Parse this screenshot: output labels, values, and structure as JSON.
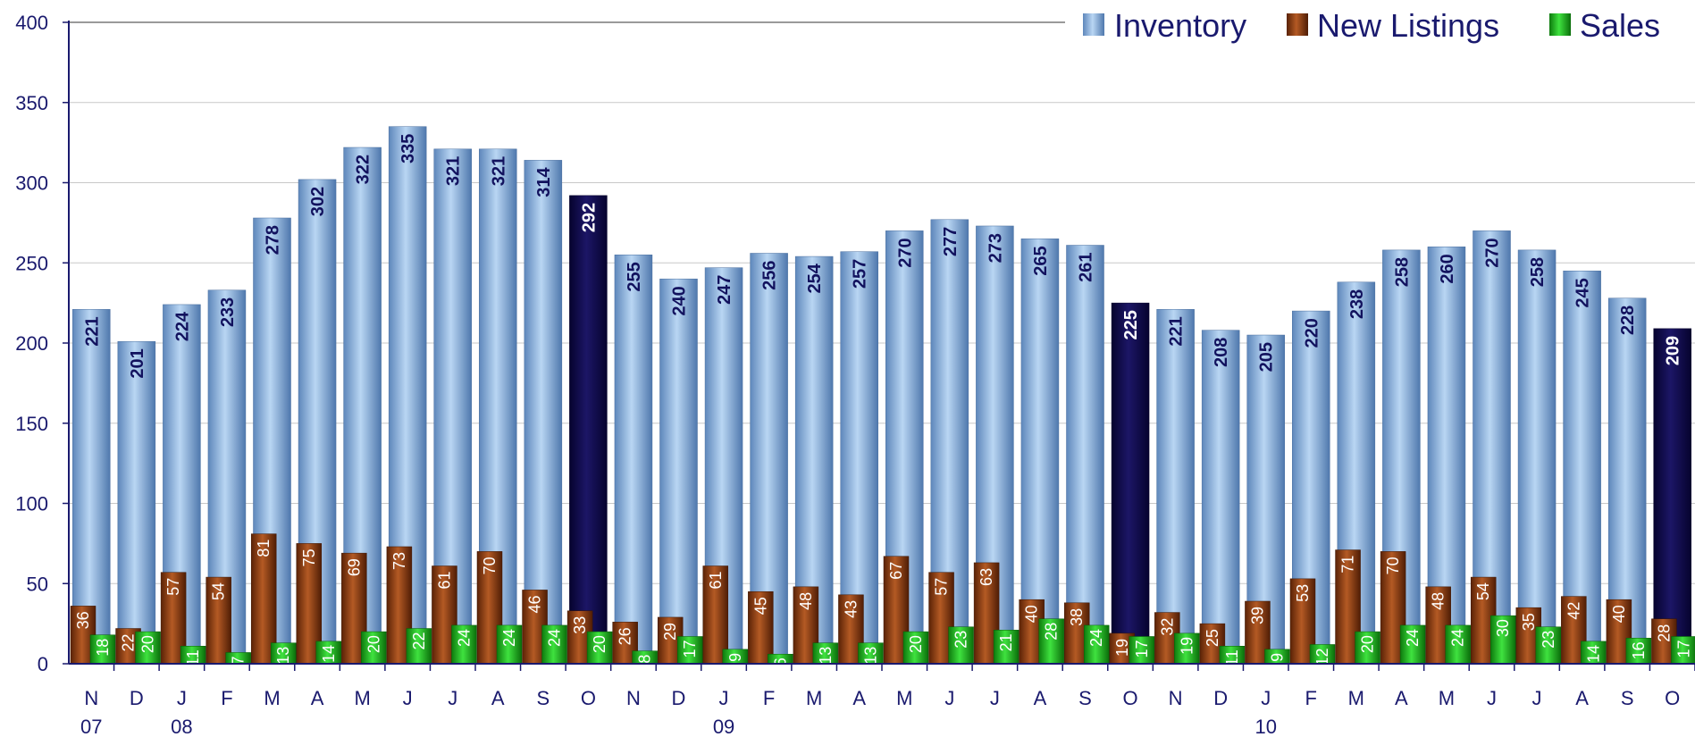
{
  "chart_data": {
    "type": "bar",
    "months": [
      "N",
      "D",
      "J",
      "F",
      "M",
      "A",
      "M",
      "J",
      "J",
      "A",
      "S",
      "O",
      "N",
      "D",
      "J",
      "F",
      "M",
      "A",
      "M",
      "J",
      "J",
      "A",
      "S",
      "O",
      "N",
      "D",
      "J",
      "F",
      "M",
      "A",
      "M",
      "J",
      "J",
      "A",
      "S",
      "O"
    ],
    "year_labels": [
      "07",
      "",
      "08",
      "",
      "",
      "",
      "",
      "",
      "",
      "",
      "",
      "",
      "",
      "",
      "09",
      "",
      "",
      "",
      "",
      "",
      "",
      "",
      "",
      "",
      "",
      "",
      "10",
      "",
      "",
      "",
      "",
      "",
      "",
      "",
      "",
      ""
    ],
    "highlight_indices": [
      11,
      23,
      35
    ],
    "series": [
      {
        "name": "Inventory",
        "values": [
          221,
          201,
          224,
          233,
          278,
          302,
          322,
          335,
          321,
          321,
          314,
          292,
          255,
          240,
          247,
          256,
          254,
          257,
          270,
          277,
          273,
          265,
          261,
          225,
          221,
          208,
          205,
          220,
          238,
          258,
          260,
          270,
          258,
          245,
          228,
          209
        ]
      },
      {
        "name": "New Listings",
        "values": [
          36,
          22,
          57,
          54,
          81,
          75,
          69,
          73,
          61,
          70,
          46,
          33,
          26,
          29,
          61,
          45,
          48,
          43,
          67,
          57,
          63,
          40,
          38,
          19,
          32,
          25,
          39,
          53,
          71,
          70,
          48,
          54,
          35,
          42,
          40,
          28
        ]
      },
      {
        "name": "Sales",
        "values": [
          18,
          20,
          11,
          7,
          13,
          14,
          20,
          22,
          24,
          24,
          24,
          20,
          8,
          17,
          9,
          6,
          13,
          13,
          20,
          23,
          21,
          28,
          24,
          17,
          19,
          11,
          9,
          12,
          20,
          24,
          24,
          30,
          23,
          14,
          16,
          17
        ]
      }
    ],
    "ylim": [
      0,
      400
    ],
    "yticks": [
      0,
      50,
      100,
      150,
      200,
      250,
      300,
      350,
      400
    ],
    "grid": true,
    "legend_position": "top-right",
    "colors": {
      "inventory": "#8db6e3",
      "inventory_highlight": "#0f0a4a",
      "new_listings": "#8b3d12",
      "sales": "#1fae1f",
      "axis": "#1a1a6e",
      "grid": "#c8c8c8"
    }
  }
}
